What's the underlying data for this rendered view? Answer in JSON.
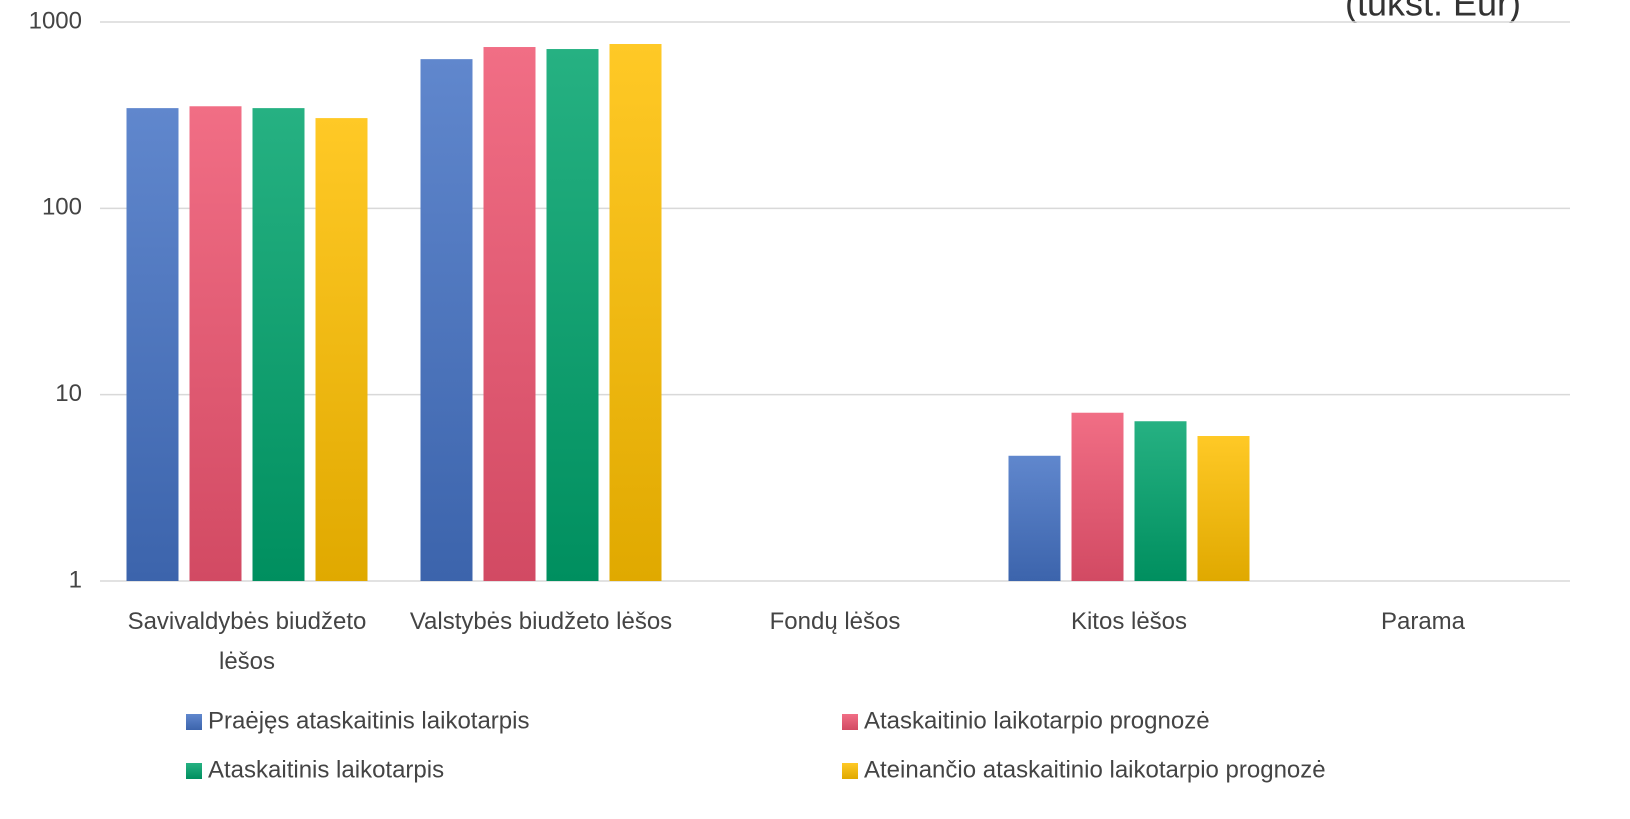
{
  "chart_data": {
    "type": "bar",
    "annotation": "(tūkst. Eur)",
    "categories": [
      "Savivaldybės biudžeto lėšos",
      "Valstybės biudžeto lėšos",
      "Fondų lėšos",
      "Kitos lėšos",
      "Parama"
    ],
    "series": [
      {
        "name": "Praėjęs ataskaitinis laikotarpis",
        "color": "#4472c4",
        "values": [
          345,
          632,
          null,
          4.7,
          null
        ]
      },
      {
        "name": "Ataskaitinio laikotarpio prognozė",
        "color": "#ef5470",
        "values": [
          353,
          734,
          null,
          8.0,
          null
        ]
      },
      {
        "name": "Ataskaitinis laikotarpis",
        "color": "#00a36c",
        "values": [
          345,
          716,
          null,
          7.2,
          null
        ]
      },
      {
        "name": "Ateinančio ataskaitinio laikotarpio prognozė",
        "color": "#ffc000",
        "values": [
          305,
          762,
          null,
          6.0,
          null
        ]
      }
    ],
    "ylim": [
      1,
      1000
    ],
    "yticks": [
      1,
      10,
      100,
      1000
    ],
    "log_scale": true,
    "grid": true,
    "legend": "bottom"
  }
}
